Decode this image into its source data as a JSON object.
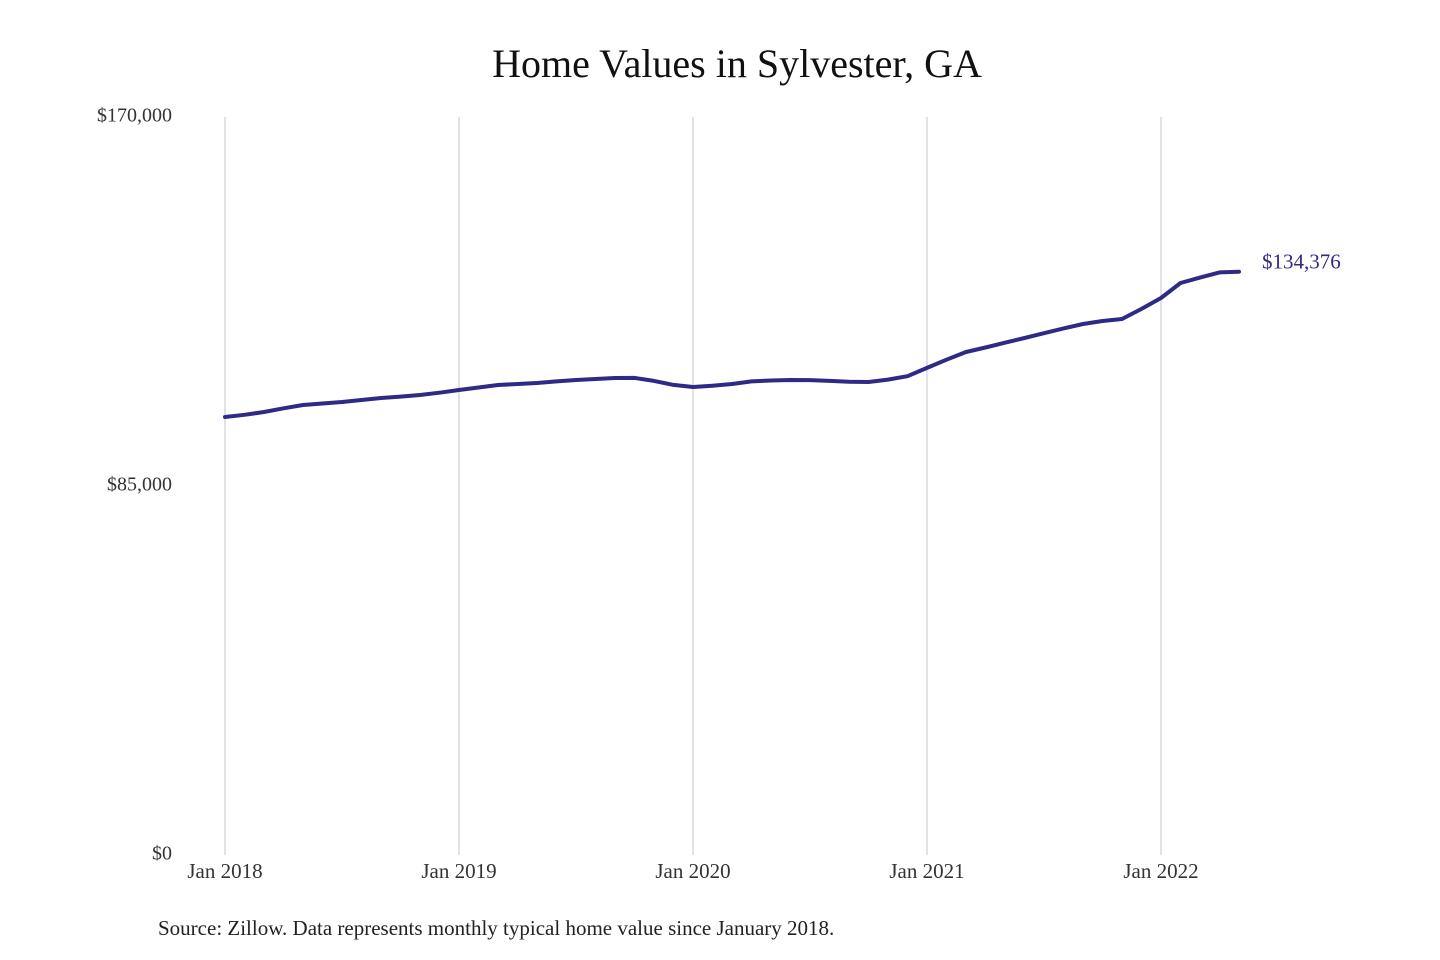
{
  "chart_data": {
    "type": "line",
    "title": "Home Values in Sylvester, GA",
    "source": "Source: Zillow. Data represents monthly typical home value since January 2018.",
    "x": [
      "2018-01",
      "2018-02",
      "2018-03",
      "2018-04",
      "2018-05",
      "2018-06",
      "2018-07",
      "2018-08",
      "2018-09",
      "2018-10",
      "2018-11",
      "2018-12",
      "2019-01",
      "2019-02",
      "2019-03",
      "2019-04",
      "2019-05",
      "2019-06",
      "2019-07",
      "2019-08",
      "2019-09",
      "2019-10",
      "2019-11",
      "2019-12",
      "2020-01",
      "2020-02",
      "2020-03",
      "2020-04",
      "2020-05",
      "2020-06",
      "2020-07",
      "2020-08",
      "2020-09",
      "2020-10",
      "2020-11",
      "2020-12",
      "2021-01",
      "2021-02",
      "2021-03",
      "2021-04",
      "2021-05",
      "2021-06",
      "2021-07",
      "2021-08",
      "2021-09",
      "2021-10",
      "2021-11",
      "2021-12",
      "2022-01",
      "2022-02",
      "2022-03",
      "2022-04",
      "2022-05"
    ],
    "values": [
      100900,
      101400,
      102050,
      102900,
      103660,
      104000,
      104350,
      104800,
      105270,
      105600,
      105970,
      106500,
      107120,
      107700,
      108270,
      108500,
      108730,
      109100,
      109420,
      109650,
      109880,
      109900,
      109200,
      108300,
      107810,
      108100,
      108500,
      109100,
      109300,
      109420,
      109400,
      109200,
      109000,
      108960,
      109500,
      110300,
      112200,
      114100,
      115870,
      116900,
      118000,
      119100,
      120200,
      121300,
      122320,
      123000,
      123470,
      125800,
      128310,
      131770,
      133000,
      134200,
      134376
    ],
    "color": "#2e2a85",
    "annotations": [
      {
        "text": "$134,376",
        "x": "2022-05",
        "value": 134376
      }
    ],
    "ylim": [
      0,
      170000
    ],
    "yticks": [
      {
        "value": 0,
        "label": "$0"
      },
      {
        "value": 85000,
        "label": "$85,000"
      },
      {
        "value": 170000,
        "label": "$170,000"
      }
    ],
    "xticks": [
      {
        "value": "2018-01",
        "label": "Jan 2018"
      },
      {
        "value": "2019-01",
        "label": "Jan 2019"
      },
      {
        "value": "2020-01",
        "label": "Jan 2020"
      },
      {
        "value": "2021-01",
        "label": "Jan 2021"
      },
      {
        "value": "2022-01",
        "label": "Jan 2022"
      }
    ],
    "grid": "x"
  }
}
